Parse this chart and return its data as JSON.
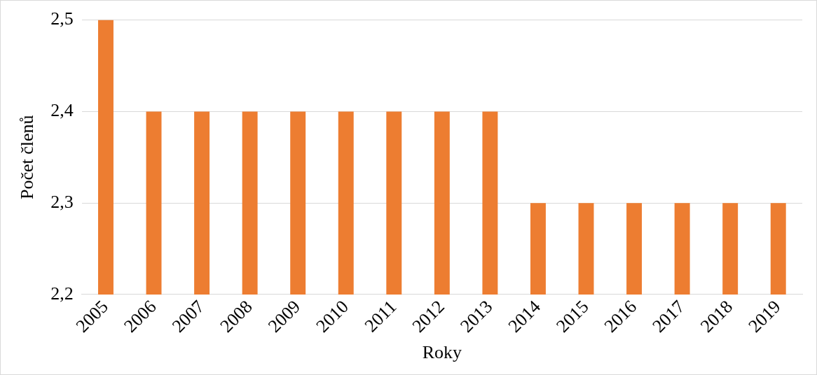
{
  "chart_data": {
    "type": "bar",
    "xlabel": "Roky",
    "ylabel": "Počet členů",
    "categories": [
      "2005",
      "2006",
      "2007",
      "2008",
      "2009",
      "2010",
      "2011",
      "2012",
      "2013",
      "2014",
      "2015",
      "2016",
      "2017",
      "2018",
      "2019"
    ],
    "values": [
      2.5,
      2.4,
      2.4,
      2.4,
      2.4,
      2.4,
      2.4,
      2.4,
      2.4,
      2.3,
      2.3,
      2.3,
      2.3,
      2.3,
      2.3
    ],
    "color": "#ed7d31",
    "ylim": [
      2.2,
      2.5
    ],
    "yticks": [
      {
        "value": 2.2,
        "label": "2,2"
      },
      {
        "value": 2.3,
        "label": "2,3"
      },
      {
        "value": 2.4,
        "label": "2,4"
      },
      {
        "value": 2.5,
        "label": "2,5"
      }
    ],
    "grid": "y",
    "legend": false
  }
}
